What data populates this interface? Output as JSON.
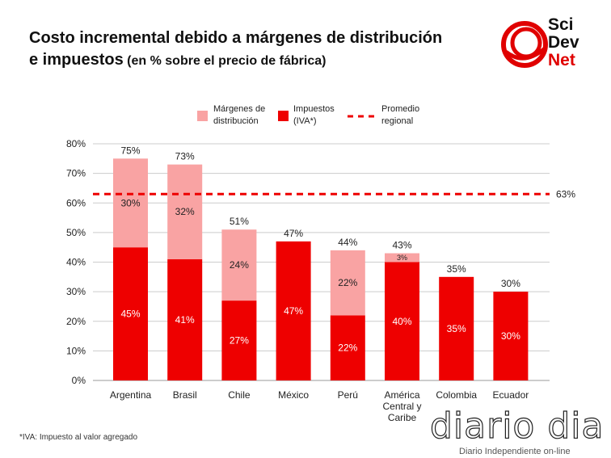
{
  "title": {
    "line1": "Costo incremental debido a márgenes de distribución",
    "line2_main": "e impuestos",
    "line2_sub": " (en % sobre el precio de fábrica)"
  },
  "logo": {
    "line1": "Sci",
    "line2": "Dev",
    "line3": "Net"
  },
  "legend": {
    "margins": "Márgenes de distribución",
    "taxes": "Impuestos (IVA*)",
    "average": "Promedio regional"
  },
  "footnote": "*IVA: Impuesto al valor agregado",
  "watermark": {
    "big": "diario dia",
    "small": "Diario Independiente on-line"
  },
  "colors": {
    "taxes": "#ee0000",
    "margins": "#f9a3a3",
    "average": "#ee0000"
  },
  "chart_data": {
    "type": "bar",
    "stacked": true,
    "categories": [
      "Argentina",
      "Brasil",
      "Chile",
      "México",
      "Perú",
      "América Central y Caribe",
      "Colombia",
      "Ecuador"
    ],
    "series": [
      {
        "name": "Impuestos (IVA*)",
        "values": [
          45,
          41,
          27,
          47,
          22,
          40,
          35,
          30
        ]
      },
      {
        "name": "Márgenes de distribución",
        "values": [
          30,
          32,
          24,
          0,
          22,
          3,
          0,
          0
        ]
      }
    ],
    "totals": [
      75,
      73,
      51,
      47,
      44,
      43,
      35,
      30
    ],
    "reference_line": {
      "name": "Promedio regional",
      "value": 63,
      "label": "63%"
    },
    "ylim": [
      0,
      80
    ],
    "yticks": [
      0,
      10,
      20,
      30,
      40,
      50,
      60,
      70,
      80
    ],
    "ytick_format": "%",
    "grid": true,
    "legend_position": "top"
  }
}
